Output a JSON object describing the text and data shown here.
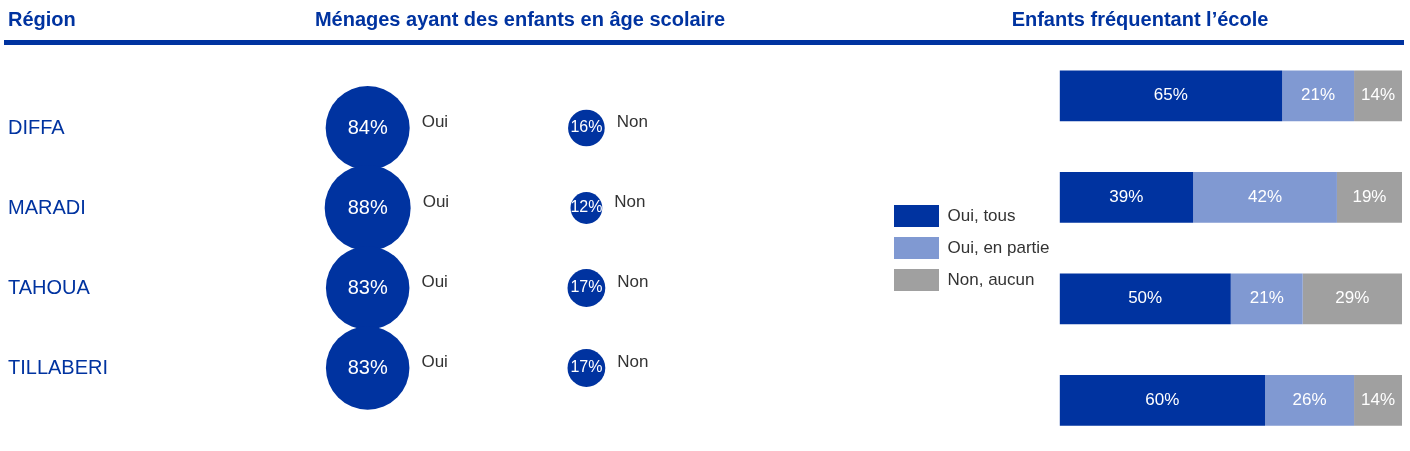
{
  "chart_data": [
    {
      "type": "other",
      "title": "Ménages ayant des enfants en âge scolaire",
      "ylabel": "Région",
      "categories": [
        "DIFFA",
        "MARADI",
        "TAHOUA",
        "TILLABERI"
      ],
      "series": [
        {
          "name": "Oui",
          "color": "#0033a0",
          "values": [
            84,
            88,
            83,
            83
          ],
          "value_labels": [
            "84%",
            "88%",
            "83%",
            "83%"
          ]
        },
        {
          "name": "Non",
          "color": "#0033a0",
          "values": [
            16,
            12,
            17,
            17
          ],
          "value_labels": [
            "16%",
            "12%",
            "17%",
            "17%"
          ]
        }
      ]
    },
    {
      "type": "bar",
      "orientation": "horizontal",
      "stacked": true,
      "title": "Enfants fréquentant l’école",
      "categories": [
        null,
        null,
        null,
        null
      ],
      "xlim": [
        0,
        100
      ],
      "legend": "left",
      "series": [
        {
          "name": "Oui, tous",
          "color": "#0033a0",
          "values": [
            65,
            39,
            50,
            60
          ],
          "value_labels": [
            "65%",
            "39%",
            "50%",
            "60%"
          ]
        },
        {
          "name": "Oui, en partie",
          "color": "#8099d2",
          "values": [
            21,
            42,
            21,
            26
          ],
          "value_labels": [
            "21%",
            "42%",
            "21%",
            "26%"
          ]
        },
        {
          "name": "Non, aucun",
          "color": "#a0a0a0",
          "values": [
            14,
            19,
            29,
            14
          ],
          "value_labels": [
            "14%",
            "19%",
            "29%",
            "14%"
          ]
        }
      ]
    }
  ]
}
